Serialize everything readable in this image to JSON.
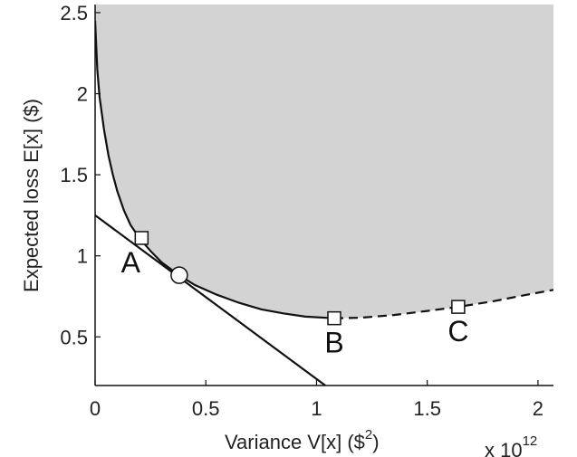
{
  "chart_data": {
    "type": "line",
    "title": "",
    "xlabel_main": "Variance V[x] ($",
    "xlabel_sup": "2",
    "xlabel_end": ")",
    "ylabel": "Expected loss E[x] ($)",
    "x_multiplier_base": "x 10",
    "x_multiplier_exp": "12",
    "xlim": [
      0,
      2.07
    ],
    "ylim": [
      0.2,
      2.55
    ],
    "x_ticks": [
      "0",
      "0.5",
      "1",
      "1.5",
      "2"
    ],
    "y_ticks": [
      "0.5",
      "1",
      "1.5",
      "2",
      "2.5"
    ],
    "grid": false,
    "feasible_region_color": "#d3d3d3",
    "frontier": {
      "solid": [
        {
          "x": 0.0,
          "y": 2.45
        },
        {
          "x": 0.01,
          "y": 2.15
        },
        {
          "x": 0.02,
          "y": 1.98
        },
        {
          "x": 0.04,
          "y": 1.78
        },
        {
          "x": 0.06,
          "y": 1.62
        },
        {
          "x": 0.08,
          "y": 1.5
        },
        {
          "x": 0.1,
          "y": 1.4
        },
        {
          "x": 0.13,
          "y": 1.28
        },
        {
          "x": 0.16,
          "y": 1.19
        },
        {
          "x": 0.2,
          "y": 1.11
        },
        {
          "x": 0.25,
          "y": 1.03
        },
        {
          "x": 0.3,
          "y": 0.96
        },
        {
          "x": 0.38,
          "y": 0.88
        },
        {
          "x": 0.45,
          "y": 0.82
        },
        {
          "x": 0.55,
          "y": 0.76
        },
        {
          "x": 0.65,
          "y": 0.71
        },
        {
          "x": 0.75,
          "y": 0.67
        },
        {
          "x": 0.85,
          "y": 0.645
        },
        {
          "x": 0.95,
          "y": 0.625
        },
        {
          "x": 1.08,
          "y": 0.615
        }
      ],
      "dashed": [
        {
          "x": 1.08,
          "y": 0.615
        },
        {
          "x": 1.2,
          "y": 0.618
        },
        {
          "x": 1.35,
          "y": 0.635
        },
        {
          "x": 1.5,
          "y": 0.66
        },
        {
          "x": 1.64,
          "y": 0.685
        },
        {
          "x": 1.8,
          "y": 0.72
        },
        {
          "x": 1.95,
          "y": 0.76
        },
        {
          "x": 2.07,
          "y": 0.79
        }
      ]
    },
    "tangent_line": [
      {
        "x": 0.0,
        "y": 1.25
      },
      {
        "x": 1.04,
        "y": 0.2
      }
    ],
    "points": [
      {
        "label": "A",
        "x": 0.21,
        "y": 1.11,
        "marker": "square"
      },
      {
        "label": "",
        "x": 0.38,
        "y": 0.88,
        "marker": "circle"
      },
      {
        "label": "B",
        "x": 1.08,
        "y": 0.615,
        "marker": "square"
      },
      {
        "label": "C",
        "x": 1.64,
        "y": 0.685,
        "marker": "square"
      }
    ]
  }
}
